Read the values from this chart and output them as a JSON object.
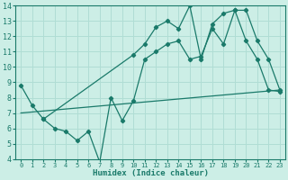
{
  "bg_color": "#cceee6",
  "grid_color": "#b0ddd4",
  "line_color": "#1a7a6a",
  "xlabel": "Humidex (Indice chaleur)",
  "xlim": [
    -0.5,
    23.5
  ],
  "ylim": [
    4,
    14
  ],
  "xticks": [
    0,
    1,
    2,
    3,
    4,
    5,
    6,
    7,
    8,
    9,
    10,
    11,
    12,
    13,
    14,
    15,
    16,
    17,
    18,
    19,
    20,
    21,
    22,
    23
  ],
  "yticks": [
    4,
    5,
    6,
    7,
    8,
    9,
    10,
    11,
    12,
    13,
    14
  ],
  "line1_x": [
    0,
    1,
    2,
    10,
    11,
    12,
    13,
    14,
    15,
    16,
    17,
    18,
    19,
    20,
    21,
    22,
    23
  ],
  "line1_y": [
    8.8,
    7.5,
    6.6,
    10.8,
    11.5,
    12.6,
    13.0,
    12.5,
    14.0,
    10.5,
    12.8,
    13.5,
    13.7,
    13.7,
    11.7,
    10.5,
    8.5
  ],
  "line2_x": [
    0,
    23
  ],
  "line2_y": [
    7.0,
    8.5
  ],
  "line3_x": [
    2,
    3,
    4,
    5,
    6,
    7,
    8,
    9,
    10,
    11,
    12,
    13,
    14,
    15,
    16,
    17,
    18,
    19,
    20,
    21,
    22,
    23
  ],
  "line3_y": [
    6.6,
    6.0,
    5.8,
    5.2,
    5.8,
    3.8,
    8.0,
    6.5,
    7.8,
    10.5,
    11.0,
    11.5,
    11.7,
    10.5,
    10.7,
    12.5,
    11.5,
    13.7,
    11.7,
    10.5,
    8.5,
    8.4
  ]
}
